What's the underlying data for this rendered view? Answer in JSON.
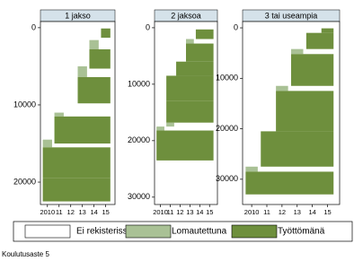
{
  "chart_data": {
    "type": "sequence",
    "xlim": [
      2009.4,
      2015.8
    ],
    "xticks": [
      2010,
      {
        "value": 2011,
        "label": "11"
      },
      {
        "value": 2012,
        "label": "12"
      },
      {
        "value": 2013,
        "label": "13"
      },
      {
        "value": 2014,
        "label": "14"
      },
      {
        "value": 2015,
        "label": "15"
      }
    ],
    "legend": [
      {
        "name": "Ei rekisterissä",
        "color": "#ffffff"
      },
      {
        "name": "Lomautettuna",
        "color": "#a9c195"
      },
      {
        "name": "Työttömänä",
        "color": "#6e8f3d"
      }
    ],
    "caption": "Koulutusaste 5",
    "facets": [
      {
        "title": "1 jakso",
        "ylim": [
          -800,
          22900
        ],
        "yticks": [
          0,
          10000,
          20000
        ],
        "blocks": [
          [],
          [
            [
              1600,
              2800,
              2013.6,
              2014.4
            ],
            [
              5000,
              6400,
              2012.6,
              2013.4
            ],
            [
              11000,
              11500,
              2010.6,
              2011.4
            ],
            [
              14500,
              15500,
              2009.6,
              2010.4
            ]
          ],
          [
            [
              100,
              1300,
              2014.6,
              2015.4
            ],
            [
              2800,
              5300,
              2013.6,
              2015.4
            ],
            [
              6400,
              9800,
              2012.6,
              2015.4
            ],
            [
              11500,
              15000,
              2010.6,
              2015.4
            ],
            [
              15500,
              19500,
              2009.6,
              2015.4
            ],
            [
              19500,
              22500,
              2009.6,
              2015.4
            ]
          ]
        ]
      },
      {
        "title": "2 jaksoa",
        "ylim": [
          -1100,
          31300
        ],
        "yticks": [
          0,
          10000,
          20000,
          30000
        ],
        "blocks": [
          [],
          [
            [
              2000,
              2800,
              2012.6,
              2013.4
            ],
            [
              16800,
              17500,
              2010.6,
              2011.4
            ],
            [
              17500,
              18200,
              2009.6,
              2010.4
            ]
          ],
          [
            [
              300,
              2000,
              2013.6,
              2015.4
            ],
            [
              2800,
              6000,
              2012.6,
              2015.4
            ],
            [
              6000,
              8500,
              2011.6,
              2015.4
            ],
            [
              8500,
              13000,
              2010.6,
              2015.4
            ],
            [
              13000,
              16800,
              2010.6,
              2015.4
            ],
            [
              18200,
              23500,
              2009.6,
              2015.4
            ]
          ]
        ]
      },
      {
        "title": "3 tai useampia",
        "ylim": [
          -1250,
          35000
        ],
        "yticks": [
          0,
          10000,
          20000,
          30000
        ],
        "blocks": [
          [],
          [
            [
              4200,
              5200,
              2012.6,
              2013.4
            ],
            [
              11500,
              12500,
              2011.6,
              2012.4
            ],
            [
              27500,
              28500,
              2009.6,
              2010.4
            ]
          ],
          [
            [
              100,
              1000,
              2014.6,
              2015.4
            ],
            [
              1000,
              4200,
              2013.6,
              2015.4
            ],
            [
              5200,
              11500,
              2012.6,
              2015.4
            ],
            [
              12500,
              20500,
              2011.6,
              2015.4
            ],
            [
              20500,
              27500,
              2010.6,
              2015.4
            ],
            [
              28500,
              33000,
              2009.6,
              2015.4
            ]
          ]
        ]
      }
    ]
  }
}
